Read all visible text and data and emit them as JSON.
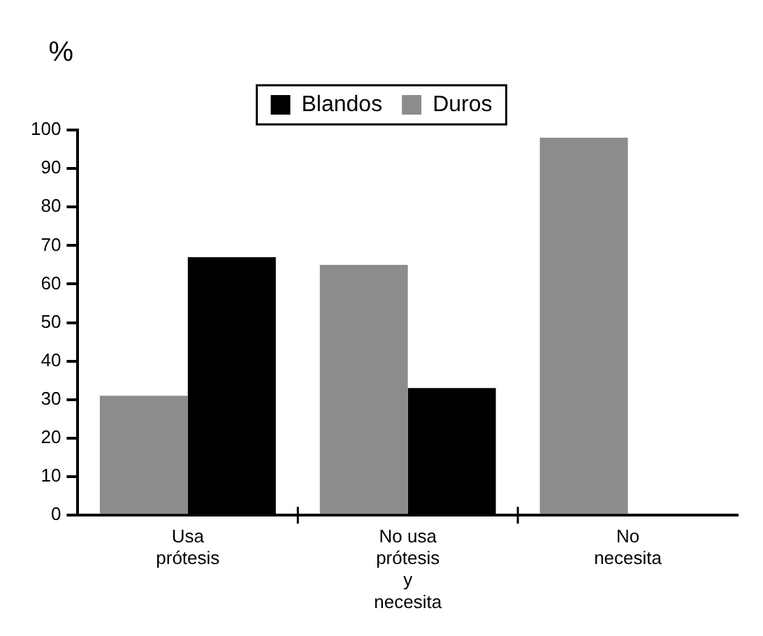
{
  "chart_data": {
    "type": "bar",
    "ylabel": "%",
    "categories": [
      "Usa prótesis",
      "No usa prótesis y necesita",
      "No necesita"
    ],
    "series": [
      {
        "name": "Duros",
        "color": "#8c8c8c",
        "values": [
          31,
          65,
          98
        ]
      },
      {
        "name": "Blandos",
        "color": "#000000",
        "values": [
          67,
          33,
          0
        ]
      }
    ],
    "ylim": [
      0,
      100
    ],
    "yticks": [
      0,
      10,
      20,
      30,
      40,
      50,
      60,
      70,
      80,
      90,
      100
    ],
    "grid": false,
    "legend": "top"
  }
}
